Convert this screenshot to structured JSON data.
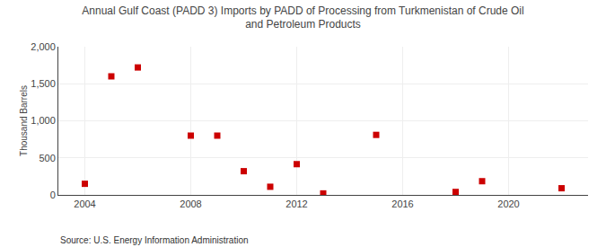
{
  "chart_data": {
    "type": "scatter",
    "title": "Annual Gulf Coast (PADD 3) Imports by PADD of Processing from Turkmenistan of Crude Oil",
    "subtitle": "and Petroleum Products",
    "y_label": "Thousand Barrels",
    "annotations": [
      "Source: U.S. Energy Information Administration"
    ],
    "x": [
      2004,
      2005,
      2006,
      2008,
      2009,
      2010,
      2011,
      2012,
      2013,
      2015,
      2018,
      2019,
      2022
    ],
    "values": [
      150,
      1600,
      1720,
      800,
      800,
      320,
      110,
      415,
      20,
      810,
      40,
      185,
      90
    ],
    "color": "#cc0000",
    "marker": "square",
    "xlim": [
      2003.0,
      2023.0
    ],
    "xticks": [
      2004,
      2008,
      2012,
      2016,
      2020
    ],
    "ylim": [
      0,
      2000
    ],
    "yticks": [
      0,
      500,
      {
        "value": 1000,
        "label": "1,000"
      },
      {
        "value": 1500,
        "label": "1,500"
      },
      {
        "value": 2000,
        "label": "2,000"
      }
    ],
    "grid": true
  }
}
